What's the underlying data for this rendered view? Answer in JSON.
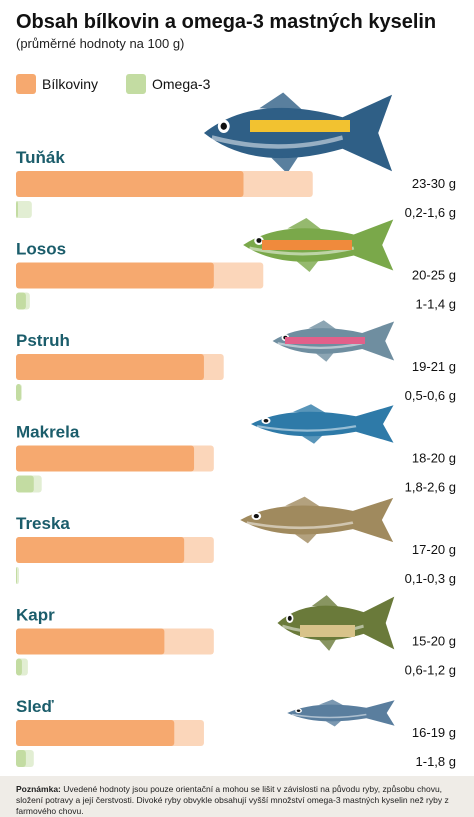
{
  "chart_data": {
    "type": "bar",
    "title": "Obsah bílkovin a omega-3 mastných kyselin",
    "subtitle": "(průměrné hodnoty na 100 g)",
    "categories": [
      "Tuňák",
      "Losos",
      "Pstruh",
      "Makrela",
      "Treska",
      "Kapr",
      "Sleď"
    ],
    "series": [
      {
        "name": "Bílkoviny",
        "color": "#f6a96f",
        "light_color": "#fbd6ba",
        "min": [
          23,
          20,
          19,
          18,
          17,
          15,
          16
        ],
        "max": [
          30,
          25,
          21,
          20,
          20,
          20,
          19
        ],
        "value_labels": [
          "23-30 g",
          "20-25 g",
          "19-21 g",
          "18-20 g",
          "17-20 g",
          "15-20 g",
          "16-19 g"
        ]
      },
      {
        "name": "Omega-3",
        "color": "#c3dca2",
        "light_color": "#e2eed3",
        "min": [
          0.2,
          1,
          0.5,
          1.8,
          0.1,
          0.6,
          1
        ],
        "max": [
          1.6,
          1.4,
          0.6,
          2.6,
          0.3,
          1.2,
          1.8
        ],
        "value_labels": [
          "0,2-1,6 g",
          "1-1,4 g",
          "0,5-0,6 g",
          "1,8-2,6 g",
          "0,1-0,3 g",
          "0,6-1,2 g",
          "1-1,8 g"
        ]
      }
    ],
    "xlim": [
      0,
      46
    ],
    "note_label": "Poznámka:",
    "note": "Uvedené hodnoty jsou pouze orientační a mohou se lišit v závislosti na původu ryby, způsobu chovu, složení potravy a její čerstvosti. Divoké ryby obvykle obsahují vyšší množství omega-3 mastných kyselin než ryby z farmového chovu."
  }
}
